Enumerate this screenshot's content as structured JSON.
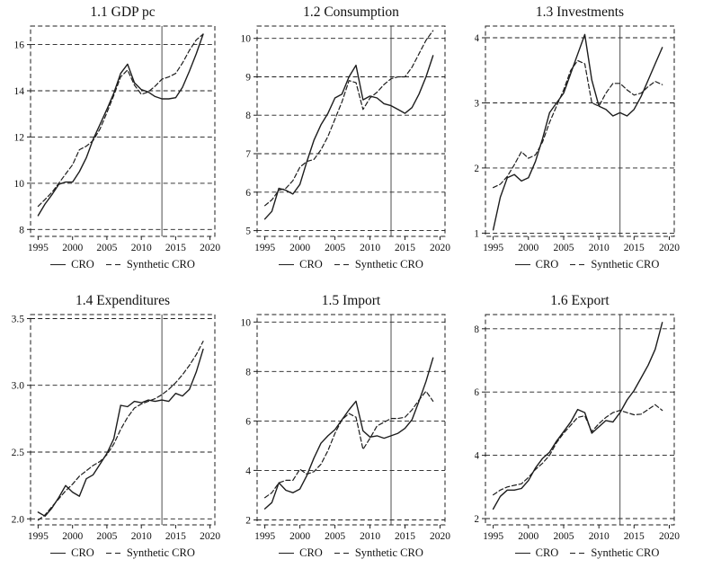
{
  "figure": {
    "background": "#ffffff",
    "line_color": "#1d1d1d",
    "treatment_year": 2013,
    "legend_labels": [
      "CRO",
      "Synthetic CRO"
    ]
  },
  "chart_data": [
    {
      "type": "line",
      "title": "1.1 GDP pc",
      "x_years": [
        1995,
        1996,
        1997,
        1998,
        1999,
        2000,
        2001,
        2002,
        2003,
        2004,
        2005,
        2006,
        2007,
        2008,
        2009,
        2010,
        2011,
        2012,
        2013,
        2014,
        2015,
        2016,
        2017,
        2018,
        2019
      ],
      "xticks": [
        1995,
        2000,
        2005,
        2010,
        2015,
        2020
      ],
      "yticks": [
        8,
        10,
        12,
        14,
        16
      ],
      "ytick_labels": [
        "8",
        "10",
        "12",
        "14",
        "16"
      ],
      "ylim": [
        7.7,
        16.8
      ],
      "xlim": [
        1993.9,
        2020.7
      ],
      "vline_x": 2013,
      "grid": "dashed-horizontal",
      "legend_position": "bottom",
      "series": [
        {
          "name": "CRO",
          "style": "solid",
          "values": [
            8.6,
            9.1,
            9.5,
            9.95,
            10.05,
            10.05,
            10.5,
            11.1,
            11.9,
            12.55,
            13.2,
            13.9,
            14.75,
            15.15,
            14.35,
            14.05,
            13.95,
            13.75,
            13.65,
            13.65,
            13.7,
            14.15,
            14.85,
            15.6,
            16.45
          ]
        },
        {
          "name": "Synthetic CRO",
          "style": "dashed",
          "values": [
            9.0,
            9.3,
            9.6,
            10.0,
            10.4,
            10.8,
            11.45,
            11.6,
            11.85,
            12.35,
            13.05,
            13.8,
            14.6,
            14.9,
            14.25,
            13.85,
            13.95,
            14.2,
            14.5,
            14.6,
            14.75,
            15.2,
            15.75,
            16.2,
            16.45
          ]
        }
      ]
    },
    {
      "type": "line",
      "title": "1.2 Consumption",
      "x_years": [
        1995,
        1996,
        1997,
        1998,
        1999,
        2000,
        2001,
        2002,
        2003,
        2004,
        2005,
        2006,
        2007,
        2008,
        2009,
        2010,
        2011,
        2012,
        2013,
        2014,
        2015,
        2016,
        2017,
        2018,
        2019
      ],
      "xticks": [
        1995,
        2000,
        2005,
        2010,
        2015,
        2020
      ],
      "yticks": [
        5,
        6,
        7,
        8,
        9,
        10
      ],
      "ytick_labels": [
        "5",
        "6",
        "7",
        "8",
        "9",
        "10"
      ],
      "ylim": [
        4.85,
        10.32
      ],
      "xlim": [
        1993.9,
        2020.7
      ],
      "vline_x": 2013,
      "grid": "dashed-horizontal",
      "legend_position": "bottom",
      "series": [
        {
          "name": "CRO",
          "style": "solid",
          "values": [
            5.3,
            5.5,
            6.1,
            6.05,
            5.95,
            6.2,
            6.8,
            7.35,
            7.75,
            8.05,
            8.45,
            8.55,
            9.0,
            9.3,
            8.4,
            8.5,
            8.45,
            8.3,
            8.25,
            8.15,
            8.05,
            8.2,
            8.55,
            9.0,
            9.55
          ]
        },
        {
          "name": "Synthetic CRO",
          "style": "dashed",
          "values": [
            5.65,
            5.8,
            6.05,
            6.1,
            6.3,
            6.65,
            6.8,
            6.85,
            7.1,
            7.45,
            7.9,
            8.35,
            8.9,
            8.85,
            8.15,
            8.45,
            8.6,
            8.8,
            8.95,
            9.0,
            9.0,
            9.25,
            9.6,
            9.95,
            10.2
          ]
        }
      ]
    },
    {
      "type": "line",
      "title": "1.3 Investments",
      "x_years": [
        1995,
        1996,
        1997,
        1998,
        1999,
        2000,
        2001,
        2002,
        2003,
        2004,
        2005,
        2006,
        2007,
        2008,
        2009,
        2010,
        2011,
        2012,
        2013,
        2014,
        2015,
        2016,
        2017,
        2018,
        2019
      ],
      "xticks": [
        1995,
        2000,
        2005,
        2010,
        2015,
        2020
      ],
      "yticks": [
        1,
        2,
        3,
        4
      ],
      "ytick_labels": [
        "1",
        "2",
        "3",
        "4"
      ],
      "ylim": [
        0.95,
        4.18
      ],
      "xlim": [
        1993.9,
        2020.7
      ],
      "vline_x": 2013,
      "grid": "dashed-horizontal",
      "legend_position": "bottom",
      "series": [
        {
          "name": "CRO",
          "style": "solid",
          "values": [
            1.05,
            1.55,
            1.85,
            1.9,
            1.8,
            1.85,
            2.1,
            2.45,
            2.85,
            3.0,
            3.15,
            3.45,
            3.75,
            4.05,
            3.35,
            2.95,
            2.9,
            2.8,
            2.85,
            2.8,
            2.9,
            3.1,
            3.35,
            3.6,
            3.85
          ]
        },
        {
          "name": "Synthetic CRO",
          "style": "dashed",
          "values": [
            1.7,
            1.75,
            1.87,
            2.05,
            2.25,
            2.15,
            2.2,
            2.4,
            2.7,
            2.95,
            3.2,
            3.5,
            3.65,
            3.6,
            3.0,
            2.95,
            3.15,
            3.3,
            3.3,
            3.2,
            3.12,
            3.15,
            3.25,
            3.33,
            3.28
          ]
        }
      ]
    },
    {
      "type": "line",
      "title": "1.4 Expenditures",
      "x_years": [
        1995,
        1996,
        1997,
        1998,
        1999,
        2000,
        2001,
        2002,
        2003,
        2004,
        2005,
        2006,
        2007,
        2008,
        2009,
        2010,
        2011,
        2012,
        2013,
        2014,
        2015,
        2016,
        2017,
        2018,
        2019
      ],
      "xticks": [
        1995,
        2000,
        2005,
        2010,
        2015,
        2020
      ],
      "yticks": [
        2.0,
        2.5,
        3.0,
        3.5
      ],
      "ytick_labels": [
        "2.0",
        "2.5",
        "3.0",
        "3.5"
      ],
      "ylim": [
        1.955,
        3.53
      ],
      "xlim": [
        1993.9,
        2020.7
      ],
      "vline_x": 2013,
      "grid": "dashed-horizontal",
      "legend_position": "bottom",
      "series": [
        {
          "name": "CRO",
          "style": "solid",
          "values": [
            2.05,
            2.02,
            2.08,
            2.16,
            2.25,
            2.2,
            2.17,
            2.3,
            2.33,
            2.41,
            2.49,
            2.6,
            2.85,
            2.84,
            2.88,
            2.87,
            2.89,
            2.88,
            2.89,
            2.88,
            2.94,
            2.92,
            2.97,
            3.1,
            3.27
          ]
        },
        {
          "name": "Synthetic CRO",
          "style": "dashed",
          "values": [
            1.99,
            2.03,
            2.09,
            2.15,
            2.21,
            2.26,
            2.32,
            2.36,
            2.4,
            2.43,
            2.48,
            2.56,
            2.67,
            2.76,
            2.83,
            2.86,
            2.88,
            2.9,
            2.93,
            2.97,
            3.02,
            3.08,
            3.15,
            3.23,
            3.33
          ]
        }
      ]
    },
    {
      "type": "line",
      "title": "1.5 Import",
      "x_years": [
        1995,
        1996,
        1997,
        1998,
        1999,
        2000,
        2001,
        2002,
        2003,
        2004,
        2005,
        2006,
        2007,
        2008,
        2009,
        2010,
        2011,
        2012,
        2013,
        2014,
        2015,
        2016,
        2017,
        2018,
        2019
      ],
      "xticks": [
        1995,
        2000,
        2005,
        2010,
        2015,
        2020
      ],
      "yticks": [
        2,
        4,
        6,
        8,
        10
      ],
      "ytick_labels": [
        "2",
        "4",
        "6",
        "8",
        "10"
      ],
      "ylim": [
        1.8,
        10.3
      ],
      "xlim": [
        1993.9,
        2020.7
      ],
      "vline_x": 2013,
      "grid": "dashed-horizontal",
      "legend_position": "bottom",
      "series": [
        {
          "name": "CRO",
          "style": "solid",
          "values": [
            2.45,
            2.7,
            3.5,
            3.2,
            3.1,
            3.25,
            3.8,
            4.5,
            5.1,
            5.4,
            5.65,
            6.05,
            6.45,
            6.8,
            5.6,
            5.35,
            5.4,
            5.3,
            5.4,
            5.5,
            5.7,
            6.05,
            6.8,
            7.6,
            8.55
          ]
        },
        {
          "name": "Synthetic CRO",
          "style": "dashed",
          "values": [
            2.9,
            3.1,
            3.5,
            3.6,
            3.6,
            4.05,
            3.85,
            3.95,
            4.25,
            4.8,
            5.5,
            6.05,
            6.3,
            6.15,
            4.85,
            5.3,
            5.8,
            5.95,
            6.1,
            6.1,
            6.15,
            6.45,
            6.85,
            7.2,
            6.8
          ]
        }
      ]
    },
    {
      "type": "line",
      "title": "1.6 Export",
      "x_years": [
        1995,
        1996,
        1997,
        1998,
        1999,
        2000,
        2001,
        2002,
        2003,
        2004,
        2005,
        2006,
        2007,
        2008,
        2009,
        2010,
        2011,
        2012,
        2013,
        2014,
        2015,
        2016,
        2017,
        2018,
        2019
      ],
      "xticks": [
        1995,
        2000,
        2005,
        2010,
        2015,
        2020
      ],
      "yticks": [
        2,
        4,
        6,
        8
      ],
      "ytick_labels": [
        "2",
        "4",
        "6",
        "8"
      ],
      "ylim": [
        1.8,
        8.45
      ],
      "xlim": [
        1993.9,
        2020.7
      ],
      "vline_x": 2013,
      "grid": "dashed-horizontal",
      "legend_position": "bottom",
      "series": [
        {
          "name": "CRO",
          "style": "solid",
          "values": [
            2.3,
            2.7,
            2.9,
            2.9,
            2.95,
            3.2,
            3.6,
            3.9,
            4.1,
            4.45,
            4.75,
            5.05,
            5.45,
            5.35,
            4.7,
            4.9,
            5.1,
            5.05,
            5.35,
            5.75,
            6.05,
            6.45,
            6.85,
            7.35,
            8.2
          ]
        },
        {
          "name": "Synthetic CRO",
          "style": "dashed",
          "values": [
            2.75,
            2.9,
            3.0,
            3.05,
            3.1,
            3.3,
            3.55,
            3.75,
            4.0,
            4.4,
            4.7,
            4.95,
            5.2,
            5.25,
            4.75,
            5.0,
            5.2,
            5.35,
            5.42,
            5.35,
            5.28,
            5.3,
            5.45,
            5.6,
            5.42
          ]
        }
      ]
    }
  ]
}
